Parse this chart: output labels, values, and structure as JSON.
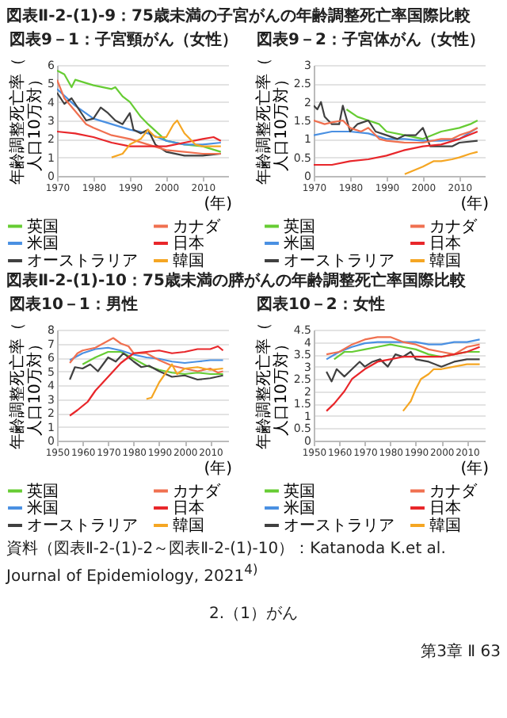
{
  "chart_data": [
    {
      "type": "line",
      "annotations": [
        "図表Ⅱ-2-(1)-9：75歳未満の子宮がんの年齢調整死亡率国際比較"
      ],
      "title": "図表9－1：子宮頸がん（女性）",
      "xlabel": "(年)",
      "ylabel": "年齢調整死亡率（人口10万対）",
      "xlim": [
        1970,
        2017
      ],
      "xticks": [
        1970,
        1980,
        1990,
        2000,
        2010
      ],
      "ylim": [
        0,
        6
      ],
      "yticks": [
        0,
        1,
        2,
        3,
        4,
        5,
        6
      ],
      "grid": "y",
      "legend": "bottom",
      "series": [
        {
          "name": "英国",
          "color": "#66cc33",
          "x": [
            1970,
            1972,
            1974,
            1975,
            1980,
            1985,
            1986,
            1988,
            1990,
            1993,
            1995,
            2000,
            2005,
            2010,
            2015
          ],
          "values": [
            5.7,
            5.5,
            4.8,
            5.2,
            4.9,
            4.7,
            4.8,
            4.3,
            4.0,
            3.2,
            2.8,
            1.9,
            1.7,
            1.6,
            1.3
          ]
        },
        {
          "name": "米国",
          "color": "#4a90e2",
          "x": [
            1970,
            1975,
            1980,
            1985,
            1990,
            1995,
            2000,
            2005,
            2010,
            2015
          ],
          "values": [
            4.7,
            3.8,
            3.1,
            2.8,
            2.5,
            2.3,
            1.9,
            1.7,
            1.7,
            1.8
          ]
        },
        {
          "name": "オーストラリア",
          "color": "#404040",
          "x": [
            1970,
            1972,
            1974,
            1976,
            1978,
            1980,
            1982,
            1984,
            1986,
            1988,
            1990,
            1991,
            1993,
            1995,
            1997,
            2000,
            2005,
            2010,
            2015
          ],
          "values": [
            4.5,
            3.9,
            4.2,
            3.6,
            3.0,
            3.1,
            3.7,
            3.4,
            3.0,
            2.8,
            3.4,
            2.5,
            2.3,
            2.5,
            1.7,
            1.3,
            1.1,
            1.1,
            1.2
          ]
        },
        {
          "name": "カナダ",
          "color": "#f07050",
          "x": [
            1970,
            1972,
            1975,
            1978,
            1980,
            1985,
            1990,
            1995,
            2000,
            2005,
            2010,
            2015
          ],
          "values": [
            5.2,
            4.2,
            3.5,
            2.8,
            2.6,
            2.2,
            2.0,
            1.7,
            1.4,
            1.3,
            1.2,
            1.2
          ]
        },
        {
          "name": "日本",
          "color": "#e8262a",
          "x": [
            1970,
            1975,
            1980,
            1985,
            1990,
            1995,
            2000,
            2005,
            2010,
            2013,
            2015
          ],
          "values": [
            2.4,
            2.3,
            2.1,
            1.8,
            1.6,
            1.6,
            1.6,
            1.8,
            2.0,
            2.1,
            1.9
          ]
        },
        {
          "name": "韓国",
          "color": "#f5a623",
          "x": [
            1985,
            1988,
            1990,
            1993,
            1995,
            1997,
            2000,
            2002,
            2003,
            2005,
            2008,
            2010,
            2015
          ],
          "values": [
            1.0,
            1.2,
            1.7,
            2.0,
            2.5,
            2.1,
            2.1,
            2.8,
            3.0,
            2.3,
            1.7,
            1.6,
            1.6
          ]
        }
      ]
    },
    {
      "type": "line",
      "title": "図表9－2：子宮体がん（女性）",
      "xlabel": "(年)",
      "ylabel": "年齢調整死亡率（人口10万対）",
      "xlim": [
        1970,
        2017
      ],
      "xticks": [
        1970,
        1980,
        1990,
        2000,
        2010
      ],
      "ylim": [
        0,
        3
      ],
      "yticks": [
        0,
        0.5,
        1,
        1.5,
        2,
        2.5,
        3
      ],
      "grid": "y",
      "legend": "bottom",
      "series": [
        {
          "name": "英国",
          "color": "#66cc33",
          "x": [
            1979,
            1982,
            1985,
            1988,
            1990,
            1995,
            2000,
            2005,
            2010,
            2013,
            2015
          ],
          "values": [
            1.8,
            1.6,
            1.5,
            1.4,
            1.2,
            1.1,
            1.0,
            1.2,
            1.3,
            1.4,
            1.5
          ]
        },
        {
          "name": "米国",
          "color": "#4a90e2",
          "x": [
            1970,
            1975,
            1980,
            1985,
            1990,
            1995,
            2000,
            2005,
            2010,
            2015
          ],
          "values": [
            1.1,
            1.2,
            1.2,
            1.15,
            1.0,
            1.0,
            0.95,
            0.95,
            1.0,
            1.3
          ]
        },
        {
          "name": "オーストラリア",
          "color": "#404040",
          "x": [
            1970,
            1971,
            1972,
            1973,
            1975,
            1977,
            1978,
            1980,
            1982,
            1985,
            1987,
            1990,
            1993,
            1995,
            1998,
            2000,
            2002,
            2005,
            2008,
            2010,
            2015
          ],
          "values": [
            1.9,
            1.8,
            2.0,
            1.6,
            1.4,
            1.4,
            1.9,
            1.2,
            1.4,
            1.5,
            1.2,
            1.1,
            1.0,
            1.1,
            1.1,
            1.3,
            0.8,
            0.8,
            0.8,
            0.9,
            0.95
          ]
        },
        {
          "name": "カナダ",
          "color": "#f07050",
          "x": [
            1970,
            1973,
            1975,
            1978,
            1980,
            1983,
            1985,
            1988,
            1990,
            1995,
            2000,
            2005,
            2008,
            2010,
            2013,
            2015
          ],
          "values": [
            1.5,
            1.4,
            1.45,
            1.5,
            1.3,
            1.2,
            1.3,
            1.0,
            0.95,
            0.9,
            0.9,
            1.0,
            1.0,
            1.1,
            1.2,
            1.3
          ]
        },
        {
          "name": "日本",
          "color": "#e8262a",
          "x": [
            1970,
            1975,
            1980,
            1985,
            1990,
            1995,
            2000,
            2005,
            2010,
            2015
          ],
          "values": [
            0.3,
            0.3,
            0.4,
            0.45,
            0.55,
            0.7,
            0.8,
            0.85,
            1.0,
            1.2
          ]
        },
        {
          "name": "韓国",
          "color": "#f5a623",
          "x": [
            1995,
            2000,
            2003,
            2005,
            2008,
            2010,
            2013,
            2015
          ],
          "values": [
            0.05,
            0.25,
            0.4,
            0.4,
            0.45,
            0.5,
            0.6,
            0.65
          ]
        }
      ]
    },
    {
      "type": "line",
      "annotations": [
        "図表Ⅱ-2-(1)-10：75歳未満の膵がんの年齢調整死亡率国際比較"
      ],
      "title": "図表10－1：男性",
      "xlabel": "(年)",
      "ylabel": "年齢調整死亡率（人口10万対）",
      "xlim": [
        1950,
        2017
      ],
      "xticks": [
        1950,
        1960,
        1970,
        1980,
        1990,
        2000,
        2010
      ],
      "ylim": [
        0,
        8
      ],
      "yticks": [
        0,
        1,
        2,
        3,
        4,
        5,
        6,
        7,
        8
      ],
      "grid": "y",
      "legend": "bottom",
      "series": [
        {
          "name": "英国",
          "color": "#66cc33",
          "x": [
            1960,
            1965,
            1970,
            1975,
            1980,
            1985,
            1990,
            1995,
            2000,
            2005,
            2010,
            2015
          ],
          "values": [
            5.5,
            6.0,
            6.4,
            6.4,
            5.9,
            5.4,
            5.1,
            4.9,
            4.8,
            4.9,
            4.8,
            4.8
          ]
        },
        {
          "name": "米国",
          "color": "#4a90e2",
          "x": [
            1955,
            1960,
            1965,
            1970,
            1975,
            1980,
            1985,
            1990,
            1995,
            2000,
            2005,
            2010,
            2015
          ],
          "values": [
            5.8,
            6.3,
            6.6,
            6.7,
            6.5,
            6.2,
            6.0,
            5.9,
            5.7,
            5.6,
            5.7,
            5.8,
            5.8
          ]
        },
        {
          "name": "オーストラリア",
          "color": "#404040",
          "x": [
            1955,
            1957,
            1960,
            1963,
            1966,
            1970,
            1973,
            1976,
            1980,
            1983,
            1986,
            1990,
            1995,
            2000,
            2005,
            2010,
            2015
          ],
          "values": [
            4.4,
            5.3,
            5.2,
            5.5,
            5.0,
            6.0,
            5.7,
            6.3,
            5.7,
            5.3,
            5.4,
            5.0,
            4.6,
            4.7,
            4.4,
            4.5,
            4.7
          ]
        },
        {
          "name": "カナダ",
          "color": "#f07050",
          "x": [
            1955,
            1958,
            1960,
            1965,
            1968,
            1970,
            1972,
            1975,
            1978,
            1980,
            1985,
            1990,
            1995,
            2000,
            2005,
            2010,
            2013,
            2015
          ],
          "values": [
            5.6,
            6.3,
            6.5,
            6.7,
            7.0,
            7.2,
            7.4,
            7.0,
            6.8,
            6.3,
            6.3,
            5.8,
            5.4,
            5.2,
            5.0,
            5.2,
            4.9,
            5.0
          ]
        },
        {
          "name": "日本",
          "color": "#e8262a",
          "x": [
            1955,
            1958,
            1962,
            1965,
            1970,
            1975,
            1980,
            1985,
            1990,
            1995,
            2000,
            2005,
            2010,
            2013,
            2015
          ],
          "values": [
            1.8,
            2.2,
            2.8,
            3.6,
            4.6,
            5.6,
            6.3,
            6.4,
            6.5,
            6.3,
            6.4,
            6.6,
            6.6,
            6.8,
            6.5
          ]
        },
        {
          "name": "韓国",
          "color": "#f5a623",
          "x": [
            1985,
            1987,
            1990,
            1993,
            1995,
            1997,
            2000,
            2005,
            2010,
            2015
          ],
          "values": [
            3.0,
            3.1,
            4.2,
            5.0,
            5.5,
            4.8,
            5.2,
            5.3,
            5.1,
            5.2
          ]
        }
      ]
    },
    {
      "type": "line",
      "title": "図表10－2：女性",
      "xlabel": "(年)",
      "ylabel": "年齢調整死亡率（人口10万対）",
      "xlim": [
        1950,
        2017
      ],
      "xticks": [
        1950,
        1960,
        1970,
        1980,
        1990,
        2000,
        2010
      ],
      "ylim": [
        0,
        4.5
      ],
      "yticks": [
        0,
        0.5,
        1,
        1.5,
        2,
        2.5,
        3,
        3.5,
        4,
        4.5
      ],
      "grid": "y",
      "legend": "bottom",
      "annotations": [
        "資料（図表Ⅱ-2-(1)-2～図表Ⅱ-2-(1)-10）：Katanoda K.et al. Journal of Epidemiology, 2021$^{4)}$",
        "2.（1）がん",
        "第3章 Ⅱ 63"
      ],
      "series": [
        {
          "name": "英国",
          "color": "#66cc33",
          "x": [
            1958,
            1962,
            1965,
            1970,
            1975,
            1980,
            1985,
            1990,
            1995,
            2000,
            2005,
            2010,
            2015
          ],
          "values": [
            3.3,
            3.6,
            3.6,
            3.7,
            3.8,
            3.9,
            3.8,
            3.7,
            3.5,
            3.4,
            3.5,
            3.6,
            3.6
          ]
        },
        {
          "name": "米国",
          "color": "#4a90e2",
          "x": [
            1955,
            1960,
            1965,
            1970,
            1975,
            1980,
            1985,
            1990,
            1995,
            2000,
            2005,
            2010,
            2015
          ],
          "values": [
            3.3,
            3.6,
            3.8,
            3.95,
            4.0,
            4.0,
            4.0,
            4.0,
            3.9,
            3.9,
            4.0,
            4.0,
            4.1
          ]
        },
        {
          "name": "オーストラリア",
          "color": "#404040",
          "x": [
            1955,
            1957,
            1959,
            1962,
            1965,
            1968,
            1970,
            1973,
            1976,
            1979,
            1982,
            1985,
            1988,
            1990,
            1995,
            2000,
            2005,
            2010,
            2015
          ],
          "values": [
            2.8,
            2.4,
            2.9,
            2.6,
            2.9,
            3.2,
            3.0,
            3.2,
            3.3,
            3.0,
            3.5,
            3.4,
            3.6,
            3.3,
            3.2,
            3.0,
            3.2,
            3.3,
            3.3
          ]
        },
        {
          "name": "カナダ",
          "color": "#f07050",
          "x": [
            1955,
            1960,
            1965,
            1970,
            1975,
            1980,
            1985,
            1990,
            1995,
            2000,
            2005,
            2010,
            2015
          ],
          "values": [
            3.5,
            3.6,
            3.9,
            4.1,
            4.2,
            4.2,
            4.0,
            3.9,
            3.7,
            3.6,
            3.5,
            3.8,
            3.9
          ]
        },
        {
          "name": "日本",
          "color": "#e8262a",
          "x": [
            1955,
            1958,
            1962,
            1965,
            1970,
            1975,
            1980,
            1985,
            1990,
            1995,
            2000,
            2005,
            2010,
            2015
          ],
          "values": [
            1.2,
            1.5,
            2.0,
            2.5,
            2.9,
            3.2,
            3.3,
            3.4,
            3.4,
            3.4,
            3.4,
            3.5,
            3.6,
            3.8
          ]
        },
        {
          "name": "韓国",
          "color": "#f5a623",
          "x": [
            1985,
            1988,
            1990,
            1992,
            1995,
            1997,
            2000,
            2005,
            2010,
            2015
          ],
          "values": [
            1.2,
            1.6,
            2.1,
            2.5,
            2.7,
            2.9,
            2.9,
            3.0,
            3.1,
            3.1
          ]
        }
      ]
    }
  ]
}
